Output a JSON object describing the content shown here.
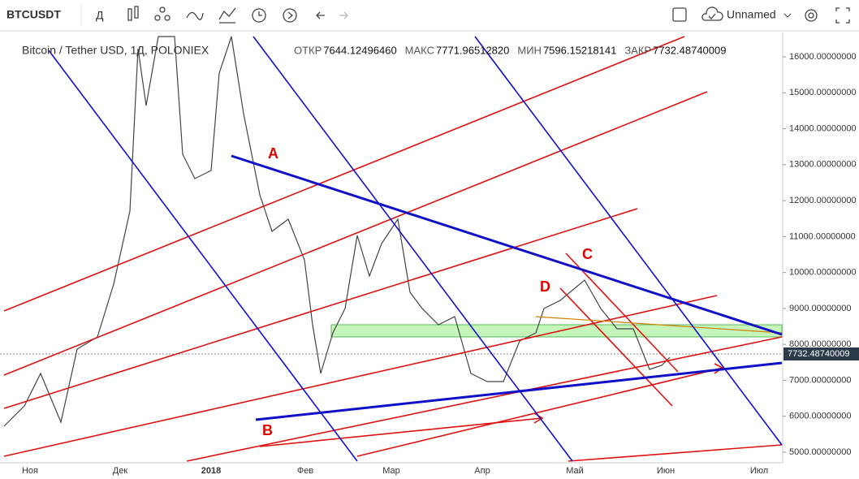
{
  "toolbar": {
    "symbol": "BTCUSDT",
    "interval": "Д",
    "layout_name": "Unnamed"
  },
  "legend": {
    "title": "Bitcoin / Tether USD, 1Д, POLONIEX",
    "fields": [
      {
        "label": "ОТКР",
        "value": "7644.12496460"
      },
      {
        "label": "МАКС",
        "value": "7771.96512820"
      },
      {
        "label": "МИН",
        "value": "7596.15218141"
      },
      {
        "label": "ЗАКР",
        "value": "7732.48740009"
      }
    ]
  },
  "price_axis": {
    "labels": [
      "16000.00000000",
      "15000.00000000",
      "14000.00000000",
      "13000.00000000",
      "12000.00000000",
      "11000.00000000",
      "10000.00000000",
      "9000.00000000",
      "8000.00000000",
      "7000.00000000",
      "6000.00000000",
      "5000.00000000"
    ],
    "current": "7732.48740009"
  },
  "time_axis": {
    "labels": [
      "Ноя",
      "Дек",
      "2018",
      "Фев",
      "Мар",
      "Апр",
      "Май",
      "Июн",
      "Июл"
    ]
  },
  "annotations": [
    "A",
    "B",
    "C",
    "D"
  ]
}
